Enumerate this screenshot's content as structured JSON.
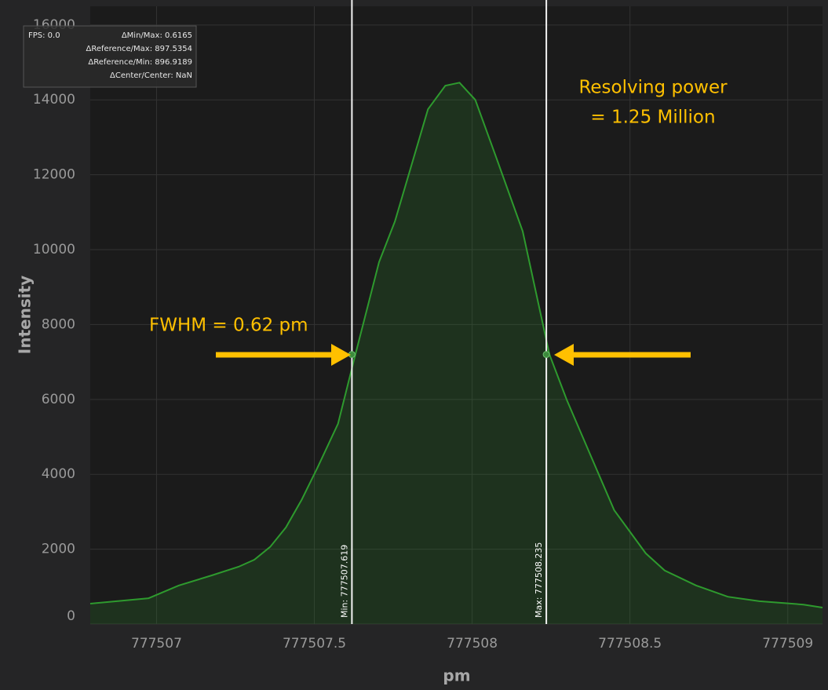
{
  "chart_data": {
    "type": "area",
    "x_label": "pm",
    "y_label": "Intensity",
    "color": "#2e9a2e",
    "grid": true,
    "xlim": [
      777506.79,
      777509.11
    ],
    "ylim": [
      0,
      16500
    ],
    "xticks": [
      777507,
      777507.5,
      777508,
      777508.5,
      777509
    ],
    "yticks": [
      0,
      2000,
      4000,
      6000,
      8000,
      10000,
      12000,
      14000,
      16000
    ],
    "x": [
      777506.79,
      777506.975,
      777507.07,
      777507.175,
      777507.26,
      777507.31,
      777507.36,
      777507.41,
      777507.46,
      777507.51,
      777507.575,
      777507.63,
      777507.705,
      777507.755,
      777507.86,
      777507.915,
      777507.96,
      777508.01,
      777508.075,
      777508.16,
      777508.245,
      777508.3,
      777508.375,
      777508.45,
      777508.55,
      777508.61,
      777508.71,
      777508.81,
      777508.91,
      777509.05,
      777509.11
    ],
    "values": [
      545,
      690,
      1030,
      1300,
      1530,
      1720,
      2060,
      2580,
      3320,
      4180,
      5350,
      7200,
      9670,
      10750,
      13750,
      14380,
      14460,
      14000,
      12490,
      10490,
      7200,
      5980,
      4510,
      3040,
      1890,
      1430,
      1030,
      730,
      610,
      520,
      440
    ],
    "cursors": [
      {
        "value": 777507.619,
        "label": "Min: 777507.619"
      },
      {
        "value": 777508.235,
        "label": "Max: 777508.235"
      }
    ],
    "cursor_level": 7200,
    "info": {
      "fps": "FPS: 0.0",
      "lines": [
        "ΔMin/Max: 0.6165",
        "ΔReference/Max: 897.5354",
        "ΔReference/Min: 896.9189",
        "ΔCenter/Center: NaN"
      ]
    },
    "annotations": [
      "FWHM = 0.62 pm",
      "Resolving power",
      "= 1.25 Million"
    ]
  }
}
